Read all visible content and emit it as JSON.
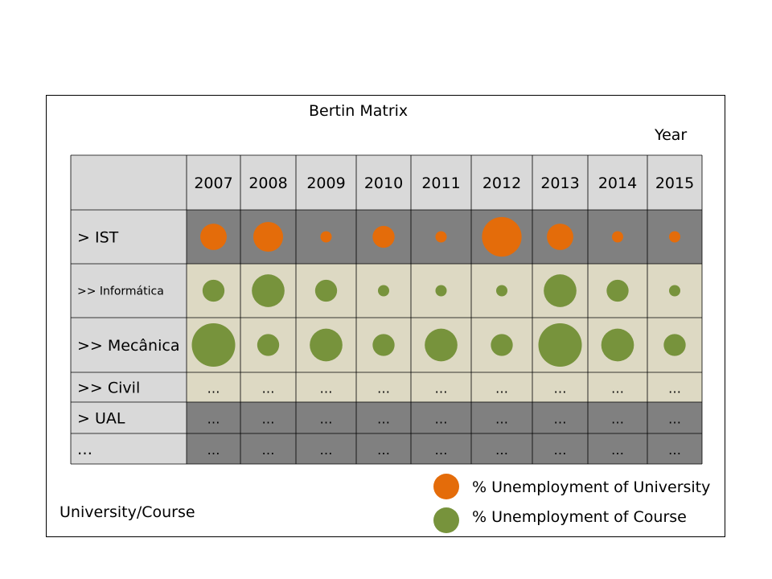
{
  "title": "Bertin Matrix",
  "column_axis_label": "Year",
  "row_axis_label": "University/Course",
  "colors": {
    "university": "#e46c0a",
    "course": "#77933c",
    "header_bg": "#d9d9d9",
    "dark_row_bg": "#808080",
    "light_row_bg": "#ddd9c3",
    "grid_line": "#000000"
  },
  "columns": [
    "2007",
    "2008",
    "2009",
    "2010",
    "2011",
    "2012",
    "2013",
    "2014",
    "2015"
  ],
  "rows": [
    {
      "label": "> IST",
      "style": "dark",
      "marker": "university",
      "values": [
        3,
        4,
        1,
        2,
        1,
        8,
        3,
        1,
        1
      ]
    },
    {
      "label": ">> Informática",
      "style": "light",
      "marker": "course",
      "values": [
        2,
        5,
        2,
        1,
        1,
        1,
        5,
        2,
        1
      ]
    },
    {
      "label": ">> Mecânica",
      "style": "light",
      "marker": "course",
      "values": [
        10,
        2,
        5,
        2,
        5,
        2,
        10,
        5,
        2
      ]
    },
    {
      "label": ">> Civil",
      "style": "light",
      "marker": "none",
      "cell_text": "…"
    },
    {
      "label": "> UAL",
      "style": "dark",
      "marker": "none",
      "cell_text": "…"
    },
    {
      "label": "…",
      "style": "dark",
      "marker": "none",
      "cell_text": "…"
    }
  ],
  "legend": [
    {
      "label": "% Unemployment of University",
      "color": "#e46c0a"
    },
    {
      "label": "% Unemployment of Course",
      "color": "#77933c"
    }
  ]
}
